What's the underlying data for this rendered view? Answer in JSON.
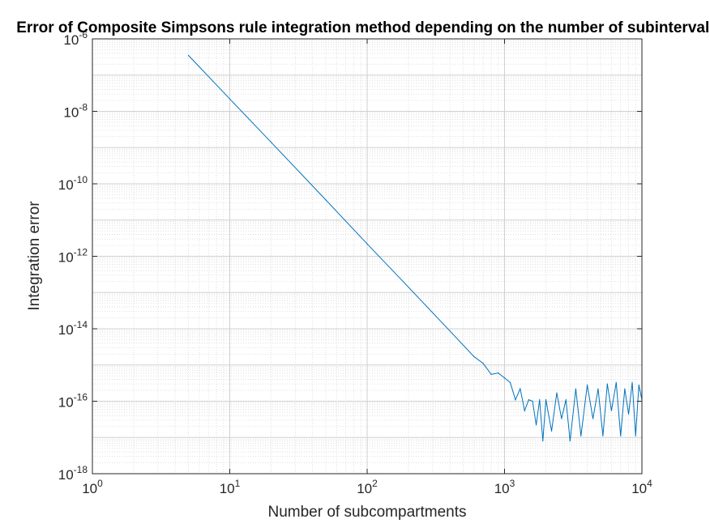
{
  "chart_data": {
    "type": "line",
    "title": "Error of Composite Simpsons rule integration method depending on the number of subintervals",
    "xlabel": "Number of subcompartments",
    "ylabel": "Integration error",
    "x_scale": "log",
    "y_scale": "log",
    "xlim": [
      1,
      10000
    ],
    "ylim": [
      1e-18,
      1e-06
    ],
    "grid": true,
    "minor_grid": true,
    "x_ticks": [
      {
        "base": "10",
        "exp": "0"
      },
      {
        "base": "10",
        "exp": "1"
      },
      {
        "base": "10",
        "exp": "2"
      },
      {
        "base": "10",
        "exp": "3"
      },
      {
        "base": "10",
        "exp": "4"
      }
    ],
    "y_ticks": [
      {
        "base": "10",
        "exp": "-18"
      },
      {
        "base": "10",
        "exp": "-16"
      },
      {
        "base": "10",
        "exp": "-14"
      },
      {
        "base": "10",
        "exp": "-12"
      },
      {
        "base": "10",
        "exp": "-10"
      },
      {
        "base": "10",
        "exp": "-8"
      },
      {
        "base": "10",
        "exp": "-6"
      }
    ],
    "series": [
      {
        "color": "#0072BD",
        "x": [
          5,
          10,
          20,
          50,
          100,
          200,
          400,
          600,
          700,
          800,
          900,
          1000,
          1100,
          1200,
          1300,
          1400,
          1500,
          1600,
          1700,
          1800,
          1900,
          2000,
          2200,
          2400,
          2600,
          2800,
          3000,
          3300,
          3600,
          4000,
          4400,
          4800,
          5200,
          5600,
          6000,
          6500,
          7000,
          7500,
          8000,
          8500,
          9000,
          9500,
          10000
        ],
        "y": [
          3.5e-07,
          2.2e-08,
          1.4e-09,
          3.6e-11,
          2.2e-12,
          1.4e-13,
          8.7e-15,
          1.7e-15,
          1.1e-15,
          5.5e-16,
          6e-16,
          4.4e-16,
          3.3e-16,
          1.1e-16,
          2.2e-16,
          5.5e-17,
          1.1e-16,
          1e-16,
          2.2e-17,
          1.1e-16,
          8e-18,
          1.1e-16,
          1.5e-17,
          1.7e-16,
          3.3e-17,
          1.1e-16,
          8e-18,
          2.2e-16,
          1.1e-17,
          2.8e-16,
          3.3e-17,
          2.2e-16,
          1.1e-17,
          3e-16,
          5.5e-17,
          3.3e-16,
          1.1e-17,
          2.2e-16,
          4.4e-17,
          3.3e-16,
          1.1e-17,
          2.8e-16,
          1.1e-16
        ]
      }
    ]
  }
}
